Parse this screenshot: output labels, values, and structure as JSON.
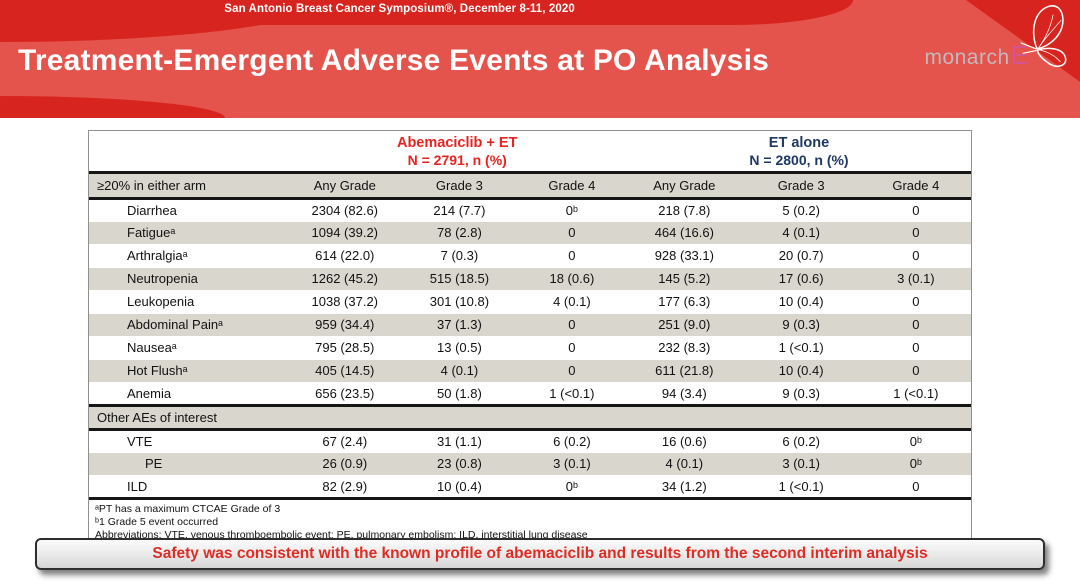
{
  "header": {
    "symposium": "San Antonio Breast Cancer Symposium®, December 8-11, 2020",
    "title": "Treatment-Emergent Adverse Events at PO Analysis",
    "logo": {
      "monarch": "monarch",
      "e": "E"
    },
    "colors": {
      "base_red": "#e4534c",
      "dark_red": "#d8241e",
      "logo_pink": "#d5538f"
    }
  },
  "table": {
    "group_headers": [
      {
        "label": "Abemaciclib + ET",
        "sub": "N = 2791, n (%)",
        "color": "#e8231f"
      },
      {
        "label": "ET alone",
        "sub": "N = 2800, n (%)",
        "color": "#1f3864"
      }
    ],
    "columns": [
      "≥20% in either arm",
      "Any Grade",
      "Grade 3",
      "Grade 4",
      "Any Grade",
      "Grade 3",
      "Grade 4"
    ],
    "rows": [
      {
        "name": "Diarrhea",
        "values": [
          "2304 (82.6)",
          "214 (7.7)",
          "0ᵇ",
          "218 (7.8)",
          "5 (0.2)",
          "0"
        ]
      },
      {
        "name": "Fatigueᵃ",
        "values": [
          "1094 (39.2)",
          "78 (2.8)",
          "0",
          "464 (16.6)",
          "4 (0.1)",
          "0"
        ]
      },
      {
        "name": "Arthralgiaᵃ",
        "values": [
          "614 (22.0)",
          "7 (0.3)",
          "0",
          "928 (33.1)",
          "20 (0.7)",
          "0"
        ]
      },
      {
        "name": "Neutropenia",
        "values": [
          "1262 (45.2)",
          "515 (18.5)",
          "18 (0.6)",
          "145 (5.2)",
          "17 (0.6)",
          "3 (0.1)"
        ]
      },
      {
        "name": "Leukopenia",
        "values": [
          "1038 (37.2)",
          "301 (10.8)",
          "4 (0.1)",
          "177 (6.3)",
          "10 (0.4)",
          "0"
        ]
      },
      {
        "name": "Abdominal Painᵃ",
        "values": [
          "959 (34.4)",
          "37 (1.3)",
          "0",
          "251 (9.0)",
          "9 (0.3)",
          "0"
        ]
      },
      {
        "name": "Nauseaᵃ",
        "values": [
          "795 (28.5)",
          "13 (0.5)",
          "0",
          "232 (8.3)",
          "1 (<0.1)",
          "0"
        ]
      },
      {
        "name": "Hot Flushᵃ",
        "values": [
          "405 (14.5)",
          "4 (0.1)",
          "0",
          "611 (21.8)",
          "10 (0.4)",
          "0"
        ]
      },
      {
        "name": "Anemia",
        "values": [
          "656 (23.5)",
          "50 (1.8)",
          "1 (<0.1)",
          "94 (3.4)",
          "9 (0.3)",
          "1 (<0.1)"
        ]
      },
      {
        "section": "Other AEs of interest"
      },
      {
        "name": "VTE",
        "values": [
          "67 (2.4)",
          "31 (1.1)",
          "6 (0.2)",
          "16 (0.6)",
          "6 (0.2)",
          "0ᵇ"
        ]
      },
      {
        "name": "PE",
        "indent": true,
        "values": [
          "26 (0.9)",
          "23 (0.8)",
          "3 (0.1)",
          "4 (0.1)",
          "3 (0.1)",
          "0ᵇ"
        ]
      },
      {
        "name": "ILD",
        "values": [
          "82 (2.9)",
          "10 (0.4)",
          "0ᵇ",
          "34 (1.2)",
          "1 (<0.1)",
          "0"
        ]
      }
    ],
    "footnotes": [
      "ᵃPT has a maximum CTCAE Grade of 3",
      "ᵇ1 Grade 5 event occurred",
      "Abbreviations: VTE, venous thromboembolic event; PE, pulmonary embolism; ILD, interstitial lung disease"
    ]
  },
  "banner": {
    "text": "Safety was consistent with the known profile of abemaciclib and results from the second interim analysis"
  }
}
